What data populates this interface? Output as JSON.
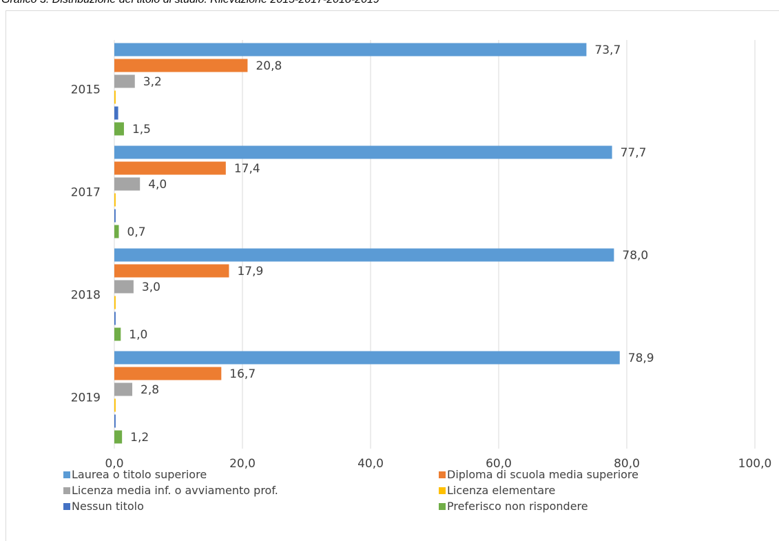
{
  "page_title": "Grafico 3. Distribuzione del titolo di studio. Rilevazione 2015-2017-2018-2019",
  "chart_data": {
    "type": "bar",
    "orientation": "horizontal",
    "categories": [
      "2015",
      "2017",
      "2018",
      "2019"
    ],
    "series": [
      {
        "name": "Laurea o titolo superiore",
        "color": "#5b9bd5",
        "values": [
          73.7,
          77.7,
          78.0,
          78.9
        ],
        "labels": [
          "73,7",
          "77,7",
          "78,0",
          "78,9"
        ]
      },
      {
        "name": "Diploma di scuola media superiore",
        "color": "#ed7d31",
        "values": [
          20.8,
          17.4,
          17.9,
          16.7
        ],
        "labels": [
          "20,8",
          "17,4",
          "17,9",
          "16,7"
        ]
      },
      {
        "name": "Licenza media inf. o avviamento prof.",
        "color": "#a5a5a5",
        "values": [
          3.2,
          4.0,
          3.0,
          2.8
        ],
        "labels": [
          "3,2",
          "4,0",
          "3,0",
          "2,8"
        ]
      },
      {
        "name": "Licenza elementare",
        "color": "#ffc000",
        "values": [
          0.2,
          0.2,
          0.2,
          0.2
        ],
        "labels": [
          "",
          "",
          "",
          ""
        ]
      },
      {
        "name": "Nessun titolo",
        "color": "#4472c4",
        "values": [
          0.6,
          0.2,
          0.2,
          0.2
        ],
        "labels": [
          "",
          "",
          "",
          ""
        ]
      },
      {
        "name": "Preferisco non rispondere",
        "color": "#70ad47",
        "values": [
          1.5,
          0.7,
          1.0,
          1.2
        ],
        "labels": [
          "1,5",
          "0,7",
          "1,0",
          "1,2"
        ]
      }
    ],
    "xlim": [
      0,
      100
    ],
    "xticks": [
      0,
      20,
      40,
      60,
      80,
      100
    ],
    "xtick_labels": [
      "0,0",
      "20,0",
      "40,0",
      "60,0",
      "80,0",
      "100,0"
    ],
    "grid": true,
    "legend_position": "bottom"
  }
}
